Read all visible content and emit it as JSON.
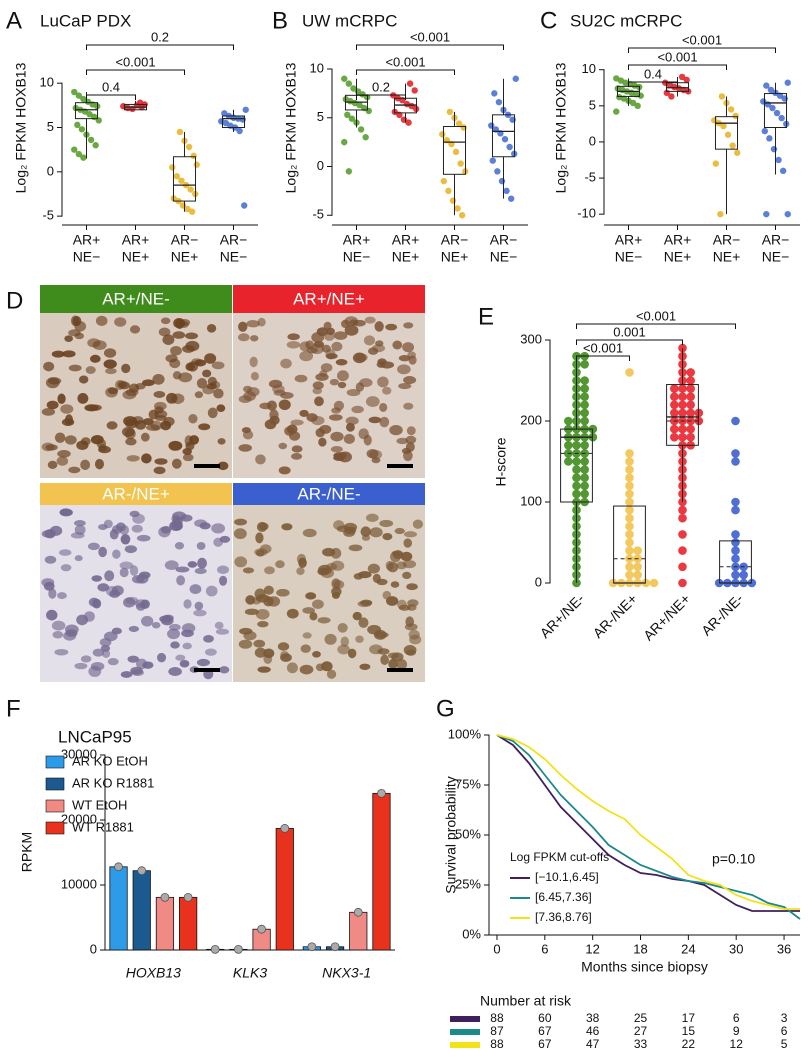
{
  "chart_data": [
    {
      "type": "box",
      "panel": "A",
      "title": "LuCaP PDX",
      "ylabel": "Log₂ FPKM HOXB13",
      "ylim": [
        -6,
        16
      ],
      "yticks": [
        -5,
        0,
        5,
        10
      ],
      "categories": [
        [
          "AR+",
          "NE−"
        ],
        [
          "AR+",
          "NE+"
        ],
        [
          "AR−",
          "NE+"
        ],
        [
          "AR−",
          "NE−"
        ]
      ],
      "groups": [
        {
          "color": "#5a9e2f",
          "q1": 6,
          "median": 7,
          "q3": 7.8,
          "whisker": [
            1.5,
            9
          ],
          "points": [
            9,
            8.6,
            8.2,
            7.9,
            7.6,
            7.4,
            7.2,
            7,
            6.8,
            6.5,
            6.2,
            5.8,
            5.3,
            4.8,
            4.2,
            3.6,
            3,
            2.5,
            2,
            1.6
          ]
        },
        {
          "color": "#e0262b",
          "q1": 7,
          "median": 7.3,
          "q3": 7.6,
          "whisker": [
            7,
            8
          ],
          "points": [
            7.8,
            7.6,
            7.4,
            7.2,
            7.1,
            7.5,
            7.3
          ]
        },
        {
          "color": "#e8b62c",
          "q1": -3.3,
          "median": -1.5,
          "q3": 1.7,
          "whisker": [
            -4.5,
            4.5
          ],
          "points": [
            4.5,
            3.5,
            2.8,
            1.8,
            0.5,
            -0.5,
            -1,
            -1.5,
            -2,
            -2.5,
            -3,
            -3.3,
            -3.8,
            -4.2,
            -4.5,
            0.8
          ]
        },
        {
          "color": "#4a72d4",
          "q1": 5,
          "median": 6,
          "q3": 6.3,
          "whisker": [
            4.5,
            7
          ],
          "points": [
            7,
            6.6,
            6.3,
            6.1,
            6,
            5.9,
            5.7,
            5.5,
            5.2,
            5,
            4.6,
            -3.8
          ]
        }
      ],
      "comparisons": [
        {
          "pair": [
            0,
            1
          ],
          "label": "0.4"
        },
        {
          "pair": [
            0,
            2
          ],
          "label": "<0.001"
        },
        {
          "pair": [
            0,
            3
          ],
          "label": "0.2"
        }
      ]
    },
    {
      "type": "box",
      "panel": "B",
      "title": "UW mCRPC",
      "ylabel": "Log₂ FPKM HOXB13",
      "ylim": [
        -6,
        14
      ],
      "yticks": [
        -5,
        0,
        5,
        10
      ],
      "categories": [
        [
          "AR+",
          "NE−"
        ],
        [
          "AR+",
          "NE+"
        ],
        [
          "AR−",
          "NE+"
        ],
        [
          "AR−",
          "NE−"
        ]
      ],
      "groups": [
        {
          "color": "#5a9e2f",
          "q1": 5.8,
          "median": 6.6,
          "q3": 7.3,
          "whisker": [
            4,
            9
          ],
          "points": [
            9,
            8.5,
            8,
            7.7,
            7.4,
            7.1,
            6.9,
            6.7,
            6.5,
            6.3,
            6,
            5.7,
            5.3,
            4.9,
            4.5,
            3.8,
            3,
            2.5,
            -0.5
          ]
        },
        {
          "color": "#e0262b",
          "q1": 5.5,
          "median": 6.3,
          "q3": 7,
          "whisker": [
            4.5,
            8.5
          ],
          "points": [
            8.5,
            7.8,
            7.3,
            7,
            6.8,
            6.4,
            6.2,
            5.9,
            5.6,
            5.3,
            4.8,
            4.5
          ]
        },
        {
          "color": "#e8b62c",
          "q1": -0.8,
          "median": 2.5,
          "q3": 4.1,
          "whisker": [
            -5,
            5.6
          ],
          "points": [
            5.6,
            5,
            4.4,
            4,
            3.3,
            2.7,
            2.3,
            1.5,
            0.3,
            -0.5,
            -1.5,
            -2.5,
            -3.5,
            -4.3,
            -5
          ]
        },
        {
          "color": "#4a72d4",
          "q1": 1,
          "median": 3.6,
          "q3": 5.3,
          "whisker": [
            -3.3,
            9
          ],
          "points": [
            9,
            7.5,
            6.6,
            5.8,
            5.3,
            4.8,
            4.2,
            3.8,
            3.4,
            2.8,
            2,
            1.3,
            0.6,
            -0.5,
            -1.5,
            -2.5,
            -3.3
          ]
        }
      ],
      "comparisons": [
        {
          "pair": [
            0,
            1
          ],
          "label": "0.2"
        },
        {
          "pair": [
            0,
            2
          ],
          "label": "<0.001"
        },
        {
          "pair": [
            0,
            3
          ],
          "label": "<0.001"
        }
      ]
    },
    {
      "type": "box",
      "panel": "C",
      "title": "SU2C mCRPC",
      "ylabel": "Log₂ FPKM HOXB13",
      "ylim": [
        -11.5,
        15.5
      ],
      "yticks": [
        -10,
        -5,
        0,
        5,
        10
      ],
      "categories": [
        [
          "AR+",
          "NE−"
        ],
        [
          "AR+",
          "NE+"
        ],
        [
          "AR−",
          "NE+"
        ],
        [
          "AR−",
          "NE−"
        ]
      ],
      "groups": [
        {
          "color": "#5a9e2f",
          "q1": 6.3,
          "median": 7,
          "q3": 7.7,
          "whisker": [
            5,
            8.8
          ],
          "points": [
            8.8,
            8.5,
            8.2,
            8,
            7.8,
            7.6,
            7.4,
            7.2,
            7,
            6.8,
            6.6,
            6.4,
            6.2,
            6,
            5.7,
            5.4,
            5,
            4.2
          ]
        },
        {
          "color": "#e0262b",
          "q1": 7,
          "median": 7.5,
          "q3": 8.2,
          "whisker": [
            6.3,
            9
          ],
          "points": [
            9,
            8.6,
            8.2,
            7.9,
            7.6,
            7.4,
            7.2,
            7,
            6.8,
            6.3
          ]
        },
        {
          "color": "#e8b62c",
          "q1": -1,
          "median": 2.6,
          "q3": 3.5,
          "whisker": [
            -10,
            6.3
          ],
          "points": [
            6.3,
            5.4,
            4.5,
            3.6,
            3,
            2.6,
            2.2,
            1,
            -0.5,
            -1.5,
            -3,
            -10
          ]
        },
        {
          "color": "#4a72d4",
          "q1": 2,
          "median": 5.4,
          "q3": 6.7,
          "whisker": [
            -4.5,
            8.2
          ],
          "points": [
            8.2,
            7.8,
            7.2,
            6.8,
            6.4,
            6,
            5.6,
            5.2,
            4.7,
            4,
            3.3,
            2.5,
            1.5,
            0.5,
            -1,
            -2.5,
            -4,
            -10,
            -10
          ]
        }
      ],
      "comparisons": [
        {
          "pair": [
            0,
            1
          ],
          "label": "0.4"
        },
        {
          "pair": [
            0,
            2
          ],
          "label": "<0.001"
        },
        {
          "pair": [
            0,
            3
          ],
          "label": "<0.001"
        }
      ]
    },
    {
      "type": "image-grid",
      "panel": "D",
      "images": [
        {
          "label": "AR+/NE-",
          "color": "#3f8c1c"
        },
        {
          "label": "AR+/NE+",
          "color": "#e8232b"
        },
        {
          "label": "AR-/NE+",
          "color": "#f2c34e"
        },
        {
          "label": "AR-/NE-",
          "color": "#3c5fcf"
        }
      ]
    },
    {
      "type": "box",
      "panel": "E",
      "ylabel": "H-score",
      "ylim": [
        0,
        300
      ],
      "yticks": [
        0,
        100,
        200,
        300
      ],
      "categories": [
        "AR+/NE-",
        "AR-/NE+",
        "AR+/NE+",
        "AR-/NE-"
      ],
      "groups": [
        {
          "color": "#3f8c1c",
          "q1": 100,
          "median": 180,
          "q3": 190,
          "mean": 160,
          "whisker": [
            0,
            280
          ],
          "points": [
            280,
            280,
            270,
            270,
            260,
            250,
            250,
            240,
            240,
            230,
            230,
            220,
            220,
            210,
            210,
            200,
            200,
            200,
            190,
            190,
            190,
            190,
            180,
            180,
            180,
            180,
            170,
            170,
            170,
            160,
            160,
            160,
            150,
            150,
            150,
            140,
            140,
            130,
            130,
            120,
            120,
            110,
            110,
            100,
            100,
            90,
            80,
            70,
            60,
            50,
            40,
            30,
            20,
            10,
            0
          ]
        },
        {
          "color": "#f2c34e",
          "q1": 0,
          "median": 0,
          "q3": 95,
          "mean": 30,
          "whisker": [
            0,
            95
          ],
          "points": [
            260,
            160,
            150,
            140,
            130,
            120,
            110,
            100,
            90,
            80,
            70,
            60,
            50,
            40,
            40,
            30,
            30,
            20,
            20,
            10,
            10,
            0,
            0,
            0,
            0,
            0,
            0
          ]
        },
        {
          "color": "#e8232b",
          "q1": 170,
          "median": 205,
          "q3": 245,
          "mean": 200,
          "whisker": [
            100,
            290
          ],
          "points": [
            290,
            280,
            270,
            260,
            260,
            250,
            250,
            240,
            240,
            240,
            230,
            230,
            230,
            220,
            220,
            220,
            210,
            210,
            210,
            210,
            200,
            200,
            200,
            200,
            190,
            190,
            190,
            180,
            180,
            180,
            170,
            170,
            160,
            150,
            140,
            130,
            120,
            110,
            100,
            90,
            80,
            60,
            40,
            20,
            0
          ]
        },
        {
          "color": "#3c5fcf",
          "q1": 0,
          "median": 0,
          "q3": 52,
          "mean": 20,
          "whisker": [
            0,
            52
          ],
          "points": [
            200,
            160,
            150,
            100,
            90,
            60,
            50,
            40,
            30,
            20,
            20,
            10,
            10,
            0,
            0,
            0,
            0,
            0
          ]
        }
      ],
      "comparisons": [
        {
          "pair": [
            0,
            1
          ],
          "label": "<0.001"
        },
        {
          "pair": [
            0,
            2
          ],
          "label": "0.001"
        },
        {
          "pair": [
            0,
            3
          ],
          "label": "<0.001"
        }
      ]
    },
    {
      "type": "bar",
      "panel": "F",
      "title": "LNCaP95",
      "ylabel": "RPKM",
      "ylim": [
        0,
        30000
      ],
      "yticks": [
        0,
        10000,
        20000,
        30000
      ],
      "categories": [
        "HOXB13",
        "KLK3",
        "NKX3-1"
      ],
      "series": [
        {
          "name": "AR KO EtOH",
          "color": "#2d9be8",
          "values": [
            12800,
            100,
            500
          ]
        },
        {
          "name": "AR KO R1881",
          "color": "#1b5a8f",
          "values": [
            12200,
            100,
            500
          ]
        },
        {
          "name": "WT EtOH",
          "color": "#f08a85",
          "values": [
            8100,
            3200,
            5800
          ]
        },
        {
          "name": "WT R1881",
          "color": "#e8321e",
          "values": [
            8100,
            18700,
            24100
          ]
        }
      ]
    },
    {
      "type": "km",
      "panel": "G",
      "xlabel": "Months since biopsy",
      "ylabel": "Survival probability",
      "xlim": [
        -1,
        38
      ],
      "xticks": [
        0,
        6,
        12,
        18,
        24,
        30,
        36
      ],
      "ylim": [
        0,
        100
      ],
      "yticks": [
        {
          "value": 0,
          "label": "0%"
        },
        {
          "value": 25,
          "label": "25%"
        },
        {
          "value": 50,
          "label": "50%"
        },
        {
          "value": 75,
          "label": "75%"
        },
        {
          "value": 100,
          "label": "100%"
        }
      ],
      "x": [
        0,
        2,
        4,
        6,
        8,
        10,
        12,
        14,
        16,
        18,
        20,
        22,
        24,
        26,
        28,
        30,
        32,
        34,
        36,
        38
      ],
      "legend_title": "Log FPKM cut-offs",
      "annotation": "p=0.10",
      "series": [
        {
          "name": "[−10.1,6.45]",
          "color": "#3f1f5c",
          "values": [
            100,
            95,
            86,
            75,
            64,
            56,
            48,
            40,
            35,
            31,
            30,
            28,
            27,
            25,
            20,
            15,
            12,
            12,
            12,
            12
          ]
        },
        {
          "name": "[6.45,7.36]",
          "color": "#1c8a8a",
          "values": [
            100,
            97,
            90,
            80,
            70,
            62,
            54,
            45,
            40,
            35,
            32,
            29,
            27,
            26,
            24,
            22,
            20,
            16,
            14,
            8
          ]
        },
        {
          "name": "[7.36,8.76]",
          "color": "#f2e21a",
          "values": [
            100,
            98,
            94,
            88,
            80,
            73,
            67,
            62,
            58,
            50,
            44,
            38,
            30,
            27,
            25,
            20,
            17,
            15,
            13,
            13
          ]
        }
      ],
      "risk_table": {
        "title": "Number at risk",
        "rows": [
          {
            "color": "#3f1f5c",
            "values": [
              88,
              60,
              38,
              25,
              17,
              6,
              3
            ]
          },
          {
            "color": "#1c8a8a",
            "values": [
              87,
              67,
              46,
              27,
              15,
              9,
              6
            ]
          },
          {
            "color": "#f2e21a",
            "values": [
              88,
              67,
              47,
              33,
              22,
              12,
              5
            ]
          }
        ]
      }
    }
  ]
}
